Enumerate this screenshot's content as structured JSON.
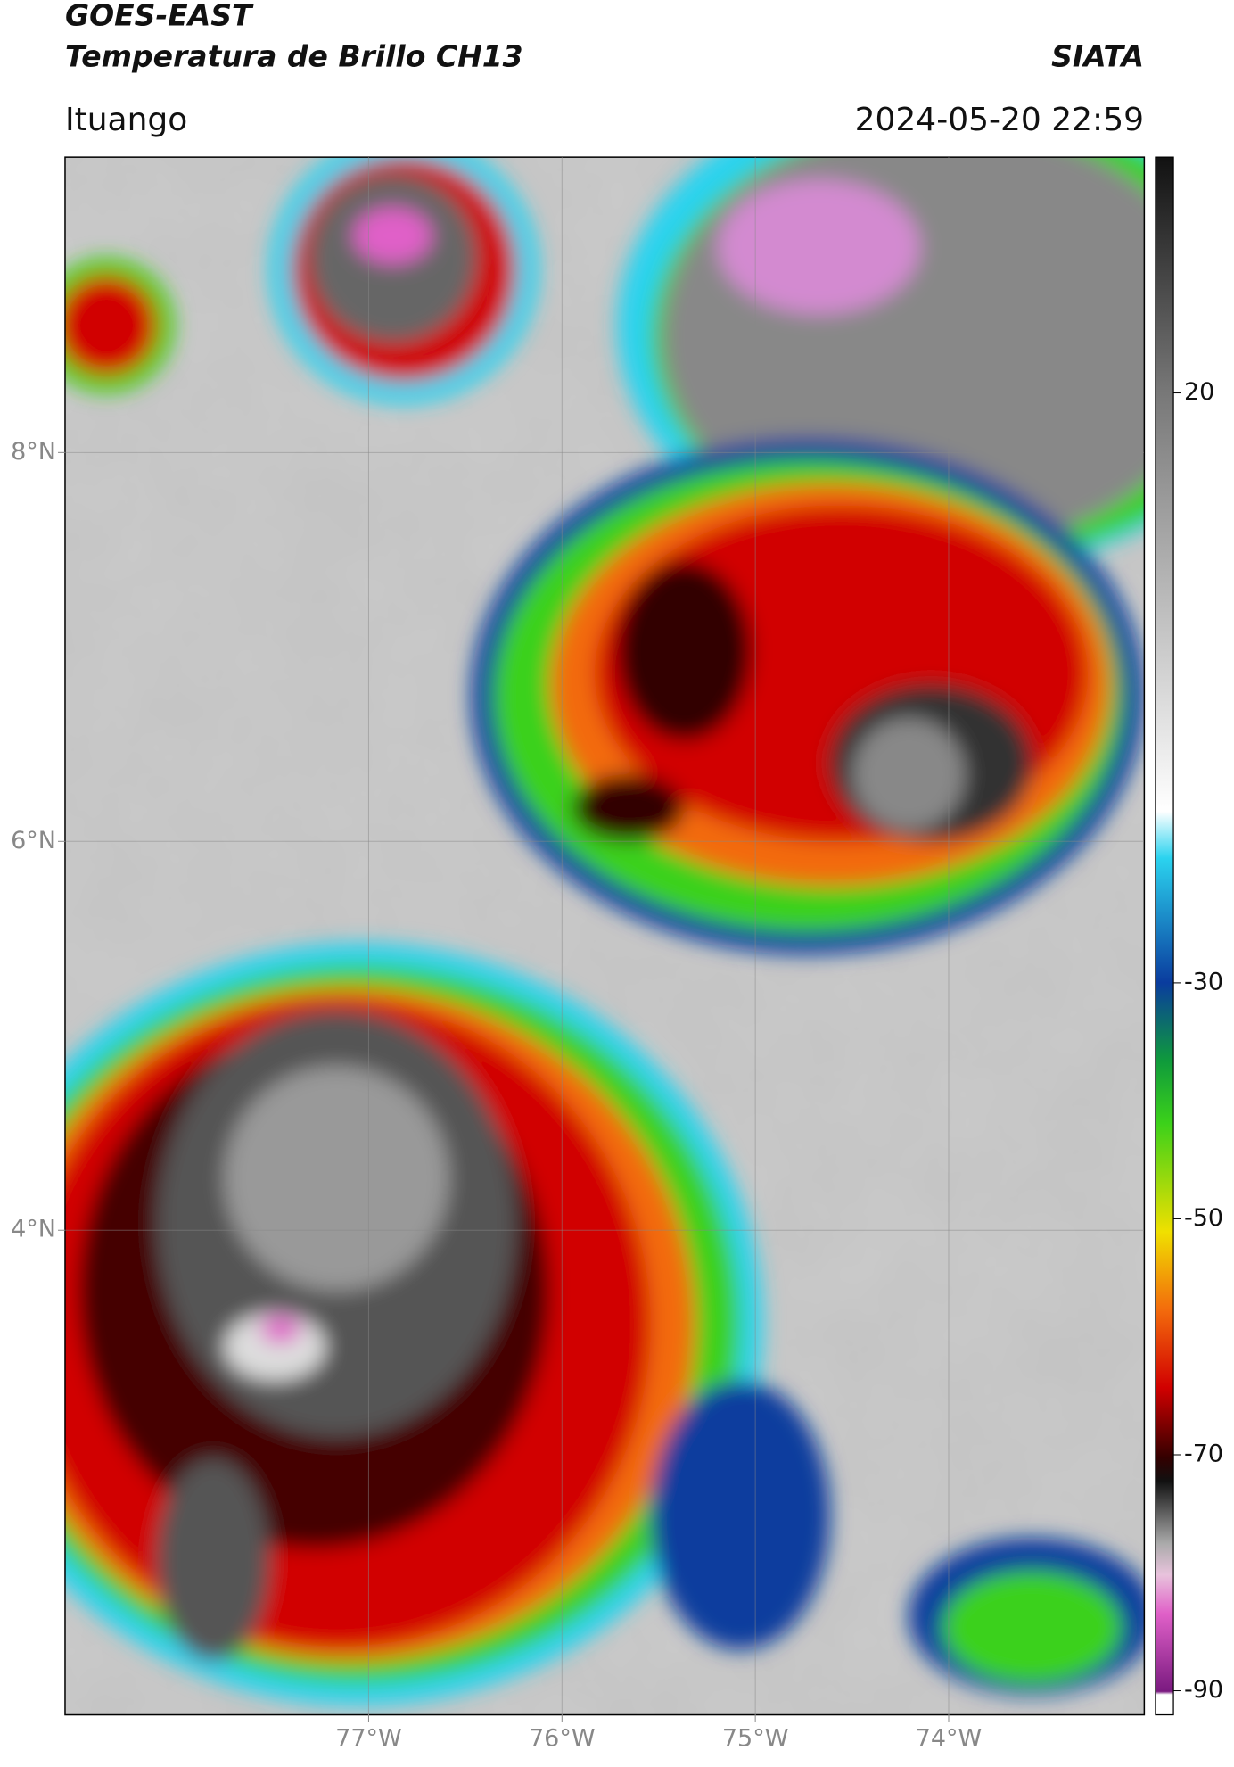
{
  "header": {
    "product": "GOES-EAST",
    "title": "Temperatura de Brillo CH13",
    "brand": "SIATA",
    "location": "Ituango",
    "datetime": "2024-05-20 22:59"
  },
  "map": {
    "xlim": [
      -78.57,
      -72.99
    ],
    "ylim": [
      1.51,
      9.52
    ],
    "xticks": [
      {
        "value": -77,
        "label": "77°W"
      },
      {
        "value": -76,
        "label": "76°W"
      },
      {
        "value": -75,
        "label": "75°W"
      },
      {
        "value": -74,
        "label": "74°W"
      }
    ],
    "yticks": [
      {
        "value": 8,
        "label": "8°N"
      },
      {
        "value": 6,
        "label": "6°N"
      },
      {
        "value": 4,
        "label": "4°N"
      }
    ],
    "grid": true
  },
  "colorbar": {
    "lim": [
      -92,
      40
    ],
    "ticks": [
      20,
      -30,
      -50,
      -70,
      -90
    ]
  }
}
